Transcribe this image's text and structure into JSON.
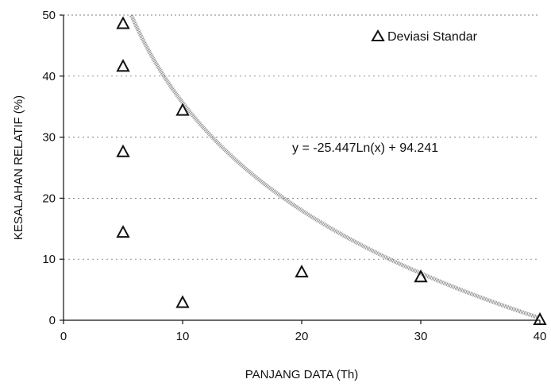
{
  "chart_data": {
    "type": "scatter",
    "xlabel": "PANJANG DATA (Th)",
    "ylabel": "KESALAHAN RELATIF (%)",
    "xlim": [
      0,
      40
    ],
    "ylim": [
      0,
      50
    ],
    "xticks": [
      "0",
      "10",
      "20",
      "30",
      "40"
    ],
    "yticks": [
      "0",
      "10",
      "20",
      "30",
      "40",
      "50"
    ],
    "grid": "dashed horizontal",
    "legend_position": "top-right",
    "series": [
      {
        "name": "Deviasi Standar",
        "marker": "triangle",
        "points": [
          {
            "x": 5,
            "y": 48.5
          },
          {
            "x": 5,
            "y": 41.5
          },
          {
            "x": 5,
            "y": 27.5
          },
          {
            "x": 5,
            "y": 14.3
          },
          {
            "x": 10,
            "y": 34.3
          },
          {
            "x": 10,
            "y": 2.8
          },
          {
            "x": 20,
            "y": 7.8
          },
          {
            "x": 30,
            "y": 7.0
          },
          {
            "x": 40,
            "y": 0
          }
        ]
      }
    ],
    "trendline": {
      "type": "logarithmic",
      "a": -25.447,
      "b": 94.241,
      "label": "y = -25.447Ln(x) + 94.241"
    },
    "colors": {
      "marker": "#111111",
      "trendline": "#8a8a8a",
      "axis": "#111111",
      "grid": "#555555"
    }
  }
}
